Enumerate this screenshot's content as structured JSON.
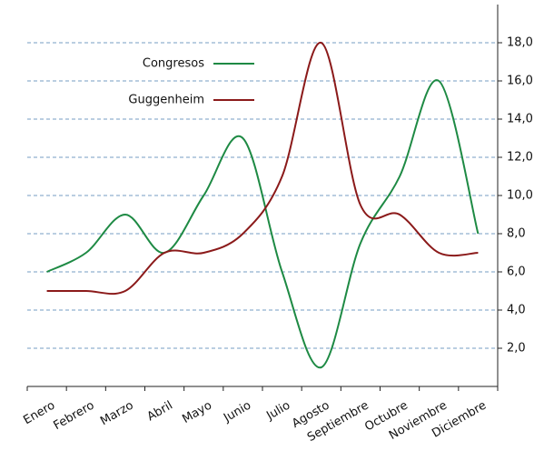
{
  "chart_data": {
    "type": "line",
    "categories": [
      "Enero",
      "Febrero",
      "Marzo",
      "Abril",
      "Mayo",
      "Junio",
      "Julio",
      "Agosto",
      "Septiembre",
      "Octubre",
      "Noviembre",
      "Diciembre"
    ],
    "series": [
      {
        "name": "Congresos",
        "color": "#1e8a44",
        "values": [
          6,
          7,
          9,
          7,
          10,
          13,
          6,
          1,
          7.5,
          11,
          16,
          8
        ]
      },
      {
        "name": "Guggenheim",
        "color": "#8b1a1a",
        "values": [
          5,
          5,
          5,
          7,
          7,
          8,
          11,
          18,
          9.5,
          9,
          7,
          7
        ]
      }
    ],
    "ylim": [
      0,
      20
    ],
    "yticks": [
      {
        "value": 2,
        "label": "2,0"
      },
      {
        "value": 4,
        "label": "4,0"
      },
      {
        "value": 6,
        "label": "6,0"
      },
      {
        "value": 8,
        "label": "8,0"
      },
      {
        "value": 10,
        "label": "10,0"
      },
      {
        "value": 12,
        "label": "12,0"
      },
      {
        "value": 14,
        "label": "14,0"
      },
      {
        "value": 16,
        "label": "16,0"
      },
      {
        "value": 18,
        "label": "18,0"
      }
    ],
    "grid": true,
    "legend": "upper left"
  }
}
